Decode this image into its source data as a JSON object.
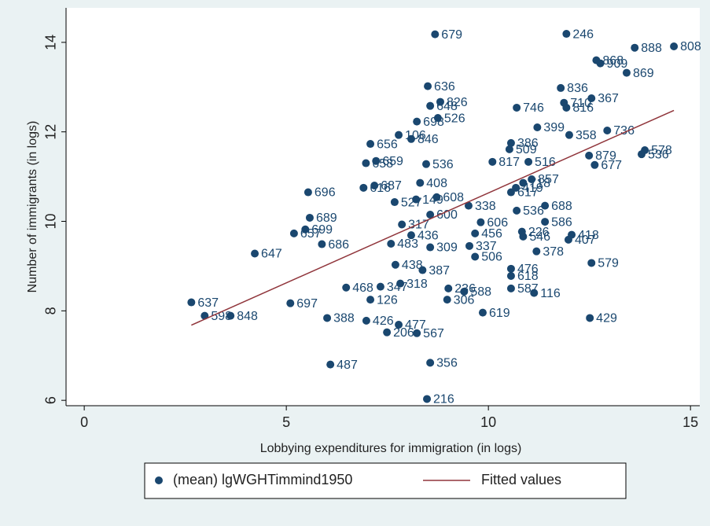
{
  "chart_data": {
    "type": "scatter",
    "x_label": "Lobbying expenditures for immigration (in logs)",
    "y_label": "Number of immigrants (in logs)",
    "xlim": [
      -0.45,
      15.23
    ],
    "ylim": [
      5.88,
      14.56
    ],
    "xticks": [
      0,
      5,
      10,
      15
    ],
    "yticks": [
      6,
      8,
      10,
      12,
      14
    ],
    "grid": false,
    "legend": "bottom",
    "series": [
      {
        "name": "(mean) lgWGHTimmind1950",
        "color": "#1a476f",
        "labels": [
          "679",
          "246",
          "888",
          "808",
          "868",
          "909",
          "869",
          "636",
          "836",
          "367",
          "826",
          "648",
          "710",
          "816",
          "746",
          "526",
          "698",
          "106",
          "846",
          "656",
          "659",
          "658",
          "536",
          "516",
          "817",
          "578",
          "536",
          "696",
          "408",
          "687",
          "616",
          "527",
          "149",
          "608",
          "689",
          "699",
          "657",
          "686",
          "647",
          "317",
          "600",
          "483",
          "436",
          "309",
          "506",
          "337",
          "438",
          "387",
          "637",
          "598",
          "848",
          "697",
          "388",
          "426",
          "477",
          "206",
          "567",
          "487",
          "356",
          "216",
          "126",
          "468",
          "347",
          "318",
          "236",
          "588",
          "306",
          "619",
          "618",
          "476",
          "587",
          "116",
          "378",
          "579",
          "429",
          "407",
          "418",
          "226",
          "546",
          "586",
          "688",
          "536",
          "617",
          "419",
          "718",
          "857",
          "677",
          "879",
          "606",
          "456",
          "338",
          "358",
          "736",
          "399",
          "386",
          "509"
        ],
        "x": [
          8.68,
          11.93,
          13.62,
          14.59,
          12.67,
          12.77,
          13.42,
          8.5,
          11.79,
          12.55,
          8.81,
          8.56,
          11.87,
          11.93,
          10.7,
          8.75,
          8.23,
          7.78,
          8.09,
          7.08,
          7.22,
          6.97,
          8.46,
          10.99,
          10.1,
          13.87,
          13.79,
          5.54,
          8.31,
          7.18,
          6.91,
          7.68,
          8.21,
          8.72,
          5.58,
          5.47,
          5.19,
          5.88,
          4.22,
          7.86,
          8.56,
          7.59,
          8.09,
          8.56,
          9.67,
          9.53,
          7.7,
          8.37,
          2.65,
          2.98,
          3.62,
          5.1,
          6.01,
          6.98,
          7.78,
          7.49,
          8.23,
          6.09,
          8.56,
          8.48,
          7.08,
          6.48,
          7.33,
          7.82,
          9.01,
          9.4,
          8.98,
          9.86,
          10.56,
          10.56,
          10.56,
          11.13,
          11.19,
          12.55,
          12.51,
          11.98,
          12.06,
          10.83,
          10.86,
          11.4,
          11.4,
          10.7,
          10.56,
          10.68,
          10.86,
          11.07,
          12.63,
          12.49,
          9.81,
          9.67,
          9.51,
          12.0,
          12.94,
          11.21,
          10.56,
          10.52
        ],
        "y": [
          14.18,
          14.19,
          13.88,
          13.91,
          13.6,
          13.53,
          13.32,
          13.02,
          12.98,
          12.75,
          12.67,
          12.58,
          12.65,
          12.54,
          12.54,
          12.31,
          12.23,
          11.93,
          11.84,
          11.73,
          11.35,
          11.3,
          11.28,
          11.33,
          11.33,
          11.59,
          11.5,
          10.65,
          10.86,
          10.8,
          10.75,
          10.43,
          10.49,
          10.54,
          10.08,
          9.82,
          9.73,
          9.49,
          9.28,
          9.93,
          10.15,
          9.5,
          9.69,
          9.42,
          9.21,
          9.45,
          9.03,
          8.91,
          8.19,
          7.89,
          7.89,
          8.17,
          7.84,
          7.78,
          7.69,
          7.52,
          7.5,
          6.8,
          6.84,
          6.03,
          8.25,
          8.52,
          8.54,
          8.61,
          8.5,
          8.43,
          8.25,
          7.96,
          8.78,
          8.94,
          8.5,
          8.4,
          9.33,
          9.07,
          7.84,
          9.59,
          9.7,
          9.77,
          9.66,
          9.99,
          10.35,
          10.24,
          10.65,
          10.75,
          10.86,
          10.94,
          11.26,
          11.47,
          9.98,
          9.73,
          10.35,
          11.93,
          12.03,
          12.1,
          11.75,
          11.61
        ]
      },
      {
        "name": "Fitted values",
        "color": "#90353b",
        "type": "line",
        "x": [
          2.65,
          14.59
        ],
        "y": [
          7.68,
          12.48
        ]
      }
    ]
  }
}
